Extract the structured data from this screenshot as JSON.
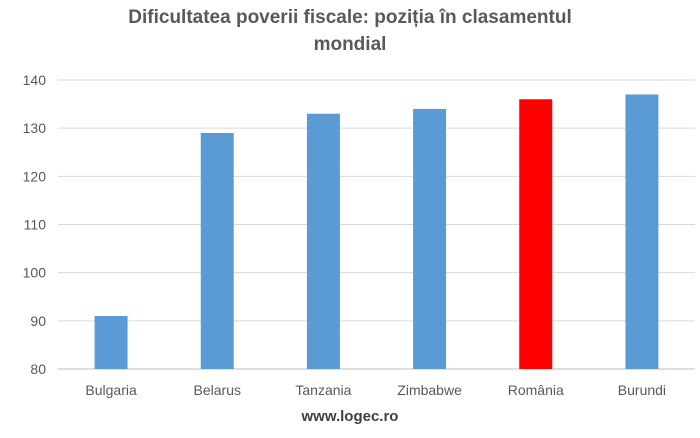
{
  "title_line1": "Dificultatea poverii fiscale: poziția în clasamentul",
  "title_line2": "mondial",
  "footer": "www.logec.ro",
  "chart_data": {
    "type": "bar",
    "title": "Dificultatea poverii fiscale: poziția în clasamentul mondial",
    "categories": [
      "Bulgaria",
      "Belarus",
      "Tanzania",
      "Zimbabwe",
      "România",
      "Burundi"
    ],
    "values": [
      91,
      129,
      133,
      134,
      136,
      137
    ],
    "bar_colors": [
      "#5B9BD5",
      "#5B9BD5",
      "#5B9BD5",
      "#5B9BD5",
      "#FF0000",
      "#5B9BD5"
    ],
    "ylim": [
      80,
      140
    ],
    "yticks": [
      80,
      90,
      100,
      110,
      120,
      130,
      140
    ],
    "grid": true,
    "legend": "none"
  }
}
